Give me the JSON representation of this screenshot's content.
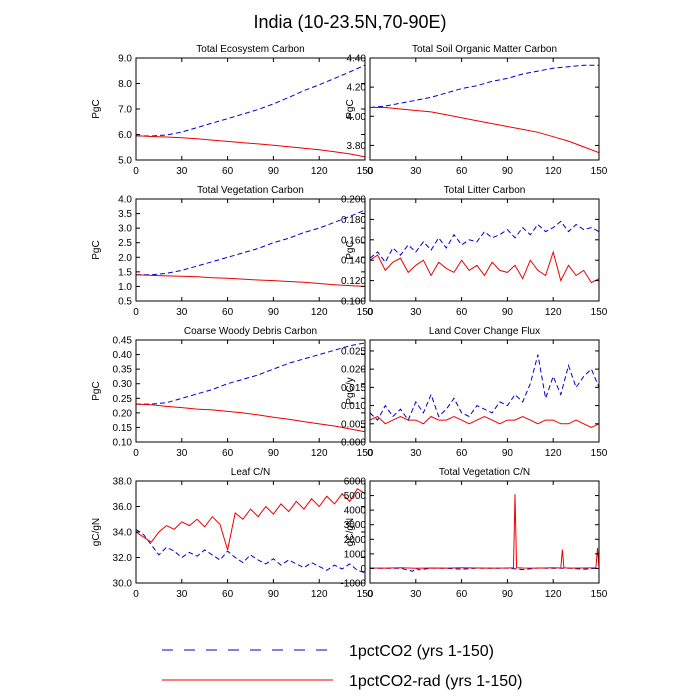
{
  "figure": {
    "title": "India (10-23.5N,70-90E)"
  },
  "legend": {
    "placement": "bottom",
    "entries": [
      {
        "label": "1pctCO2 (yrs 1-150)",
        "color": "#0000cc",
        "dash": "dashed"
      },
      {
        "label": "1pctCO2-rad (yrs 1-150)",
        "color": "#ee0000",
        "dash": "solid"
      }
    ]
  },
  "chart_data": [
    {
      "type": "line",
      "title": "Total Ecosystem Carbon",
      "xlabel": "",
      "ylabel": "PgC",
      "xlim": [
        0,
        150
      ],
      "ylim": [
        5.0,
        9.0
      ],
      "xticks": [
        0,
        30,
        60,
        90,
        120,
        150
      ],
      "yticks": [
        5.0,
        6.0,
        7.0,
        8.0,
        9.0
      ],
      "ytick_labels": [
        "5.0",
        "6.0",
        "7.0",
        "8.0",
        "9.0"
      ],
      "series": [
        {
          "legend_index": 0,
          "x": [
            0,
            10,
            20,
            30,
            40,
            50,
            60,
            70,
            80,
            90,
            100,
            110,
            120,
            130,
            140,
            150
          ],
          "y": [
            5.95,
            5.94,
            5.98,
            6.1,
            6.27,
            6.45,
            6.62,
            6.8,
            6.98,
            7.2,
            7.45,
            7.72,
            7.95,
            8.2,
            8.45,
            8.72
          ]
        },
        {
          "legend_index": 1,
          "x": [
            0,
            10,
            20,
            30,
            40,
            50,
            60,
            70,
            80,
            90,
            100,
            110,
            120,
            130,
            140,
            150
          ],
          "y": [
            5.95,
            5.92,
            5.9,
            5.87,
            5.83,
            5.78,
            5.73,
            5.68,
            5.63,
            5.58,
            5.52,
            5.46,
            5.4,
            5.32,
            5.24,
            5.12
          ]
        }
      ]
    },
    {
      "type": "line",
      "title": "Total Soil Organic Matter Carbon",
      "xlabel": "",
      "ylabel": "PgC",
      "xlim": [
        0,
        150
      ],
      "ylim": [
        3.7,
        4.4
      ],
      "xticks": [
        0,
        30,
        60,
        90,
        120,
        150
      ],
      "yticks": [
        3.8,
        4.0,
        4.2,
        4.4
      ],
      "ytick_labels": [
        "3.80",
        "4.00",
        "4.20",
        "4.40"
      ],
      "series": [
        {
          "legend_index": 0,
          "x": [
            0,
            10,
            20,
            30,
            40,
            50,
            60,
            70,
            80,
            90,
            100,
            110,
            120,
            130,
            140,
            150
          ],
          "y": [
            4.06,
            4.07,
            4.09,
            4.11,
            4.13,
            4.16,
            4.19,
            4.21,
            4.24,
            4.26,
            4.29,
            4.31,
            4.33,
            4.34,
            4.35,
            4.35
          ]
        },
        {
          "legend_index": 1,
          "x": [
            0,
            10,
            20,
            30,
            40,
            50,
            60,
            70,
            80,
            90,
            100,
            110,
            120,
            130,
            140,
            150
          ],
          "y": [
            4.06,
            4.06,
            4.05,
            4.04,
            4.03,
            4.01,
            3.99,
            3.97,
            3.95,
            3.93,
            3.91,
            3.89,
            3.86,
            3.83,
            3.79,
            3.75
          ]
        }
      ]
    },
    {
      "type": "line",
      "title": "Total Vegetation Carbon",
      "xlabel": "",
      "ylabel": "PgC",
      "xlim": [
        0,
        150
      ],
      "ylim": [
        0.5,
        4.0
      ],
      "xticks": [
        0,
        30,
        60,
        90,
        120,
        150
      ],
      "yticks": [
        0.5,
        1.0,
        1.5,
        2.0,
        2.5,
        3.0,
        3.5,
        4.0
      ],
      "ytick_labels": [
        "0.5",
        "1.0",
        "1.5",
        "2.0",
        "2.5",
        "3.0",
        "3.5",
        "4.0"
      ],
      "series": [
        {
          "legend_index": 0,
          "x": [
            0,
            10,
            20,
            30,
            40,
            50,
            60,
            70,
            80,
            90,
            100,
            110,
            120,
            130,
            140,
            150
          ],
          "y": [
            1.4,
            1.4,
            1.45,
            1.55,
            1.7,
            1.85,
            2.0,
            2.15,
            2.3,
            2.5,
            2.65,
            2.85,
            3.0,
            3.2,
            3.4,
            3.62
          ]
        },
        {
          "legend_index": 1,
          "x": [
            0,
            10,
            20,
            30,
            40,
            50,
            60,
            70,
            80,
            90,
            100,
            110,
            120,
            130,
            140,
            150
          ],
          "y": [
            1.4,
            1.38,
            1.36,
            1.35,
            1.33,
            1.3,
            1.28,
            1.25,
            1.22,
            1.2,
            1.17,
            1.14,
            1.1,
            1.06,
            1.03,
            1.0
          ]
        }
      ]
    },
    {
      "type": "line",
      "title": "Total Litter Carbon",
      "xlabel": "",
      "ylabel": "PgC",
      "xlim": [
        0,
        150
      ],
      "ylim": [
        0.1,
        0.2
      ],
      "xticks": [
        0,
        30,
        60,
        90,
        120,
        150
      ],
      "yticks": [
        0.1,
        0.12,
        0.14,
        0.16,
        0.18,
        0.2
      ],
      "ytick_labels": [
        "0.100",
        "0.120",
        "0.140",
        "0.160",
        "0.180",
        "0.200"
      ],
      "series": [
        {
          "legend_index": 0,
          "x": [
            0,
            5,
            10,
            15,
            20,
            25,
            30,
            35,
            40,
            45,
            50,
            55,
            60,
            65,
            70,
            75,
            80,
            85,
            90,
            95,
            100,
            105,
            110,
            115,
            120,
            125,
            130,
            135,
            140,
            145,
            150
          ],
          "y": [
            0.142,
            0.148,
            0.138,
            0.152,
            0.145,
            0.155,
            0.148,
            0.158,
            0.15,
            0.162,
            0.152,
            0.165,
            0.155,
            0.16,
            0.158,
            0.168,
            0.162,
            0.165,
            0.17,
            0.162,
            0.172,
            0.165,
            0.175,
            0.168,
            0.172,
            0.178,
            0.168,
            0.175,
            0.17,
            0.172,
            0.168
          ]
        },
        {
          "legend_index": 1,
          "x": [
            0,
            5,
            10,
            15,
            20,
            25,
            30,
            35,
            40,
            45,
            50,
            55,
            60,
            65,
            70,
            75,
            80,
            85,
            90,
            95,
            100,
            105,
            110,
            115,
            120,
            125,
            130,
            135,
            140,
            145,
            150
          ],
          "y": [
            0.14,
            0.145,
            0.13,
            0.138,
            0.142,
            0.128,
            0.135,
            0.14,
            0.125,
            0.138,
            0.132,
            0.128,
            0.14,
            0.13,
            0.135,
            0.125,
            0.138,
            0.13,
            0.128,
            0.135,
            0.122,
            0.14,
            0.13,
            0.125,
            0.148,
            0.12,
            0.135,
            0.125,
            0.13,
            0.118,
            0.122
          ]
        }
      ]
    },
    {
      "type": "line",
      "title": "Coarse Woody Debris Carbon",
      "xlabel": "",
      "ylabel": "PgC",
      "xlim": [
        0,
        150
      ],
      "ylim": [
        0.1,
        0.45
      ],
      "xticks": [
        0,
        30,
        60,
        90,
        120,
        150
      ],
      "yticks": [
        0.1,
        0.15,
        0.2,
        0.25,
        0.3,
        0.35,
        0.4,
        0.45
      ],
      "ytick_labels": [
        "0.10",
        "0.15",
        "0.20",
        "0.25",
        "0.30",
        "0.35",
        "0.40",
        "0.45"
      ],
      "series": [
        {
          "legend_index": 0,
          "x": [
            0,
            10,
            20,
            30,
            40,
            50,
            60,
            70,
            80,
            90,
            100,
            110,
            120,
            130,
            140,
            150
          ],
          "y": [
            0.23,
            0.23,
            0.235,
            0.25,
            0.265,
            0.28,
            0.3,
            0.315,
            0.33,
            0.35,
            0.37,
            0.385,
            0.4,
            0.415,
            0.43,
            0.44
          ]
        },
        {
          "legend_index": 1,
          "x": [
            0,
            10,
            20,
            30,
            40,
            50,
            60,
            70,
            80,
            90,
            100,
            110,
            120,
            130,
            140,
            150
          ],
          "y": [
            0.23,
            0.228,
            0.222,
            0.218,
            0.213,
            0.21,
            0.205,
            0.2,
            0.193,
            0.185,
            0.178,
            0.17,
            0.162,
            0.155,
            0.145,
            0.135
          ]
        }
      ]
    },
    {
      "type": "line",
      "title": "Land Cover Change Flux",
      "xlabel": "",
      "ylabel": "PgC/y",
      "xlim": [
        0,
        150
      ],
      "ylim": [
        0.0,
        0.028
      ],
      "xticks": [
        0,
        30,
        60,
        90,
        120,
        150
      ],
      "yticks": [
        0.0,
        0.005,
        0.01,
        0.015,
        0.02,
        0.025
      ],
      "ytick_labels": [
        "0.000",
        "0.005",
        "0.010",
        "0.015",
        "0.020",
        "0.025"
      ],
      "series": [
        {
          "legend_index": 0,
          "x": [
            0,
            5,
            10,
            15,
            20,
            25,
            30,
            35,
            40,
            45,
            50,
            55,
            60,
            65,
            70,
            75,
            80,
            85,
            90,
            95,
            100,
            105,
            110,
            115,
            120,
            125,
            130,
            135,
            140,
            145,
            150
          ],
          "y": [
            0.008,
            0.006,
            0.01,
            0.007,
            0.009,
            0.006,
            0.011,
            0.008,
            0.013,
            0.007,
            0.009,
            0.012,
            0.008,
            0.007,
            0.01,
            0.009,
            0.008,
            0.011,
            0.01,
            0.013,
            0.011,
            0.016,
            0.024,
            0.012,
            0.018,
            0.013,
            0.021,
            0.015,
            0.018,
            0.02,
            0.015
          ]
        },
        {
          "legend_index": 1,
          "x": [
            0,
            5,
            10,
            15,
            20,
            25,
            30,
            35,
            40,
            45,
            50,
            55,
            60,
            65,
            70,
            75,
            80,
            85,
            90,
            95,
            100,
            105,
            110,
            115,
            120,
            125,
            130,
            135,
            140,
            145,
            150
          ],
          "y": [
            0.006,
            0.007,
            0.005,
            0.006,
            0.007,
            0.006,
            0.006,
            0.005,
            0.007,
            0.006,
            0.006,
            0.007,
            0.006,
            0.005,
            0.006,
            0.007,
            0.006,
            0.005,
            0.006,
            0.006,
            0.007,
            0.006,
            0.005,
            0.006,
            0.006,
            0.005,
            0.005,
            0.006,
            0.005,
            0.004,
            0.005
          ]
        }
      ]
    },
    {
      "type": "line",
      "title": "Leaf C/N",
      "xlabel": "",
      "ylabel": "gC/gN",
      "xlim": [
        0,
        150
      ],
      "ylim": [
        30.0,
        38.0
      ],
      "xticks": [
        0,
        30,
        60,
        90,
        120,
        150
      ],
      "yticks": [
        30.0,
        32.0,
        34.0,
        36.0,
        38.0
      ],
      "ytick_labels": [
        "30.0",
        "32.0",
        "34.0",
        "36.0",
        "38.0"
      ],
      "series": [
        {
          "legend_index": 0,
          "x": [
            0,
            5,
            10,
            15,
            20,
            25,
            30,
            35,
            40,
            45,
            50,
            55,
            60,
            65,
            70,
            75,
            80,
            85,
            90,
            95,
            100,
            105,
            110,
            115,
            120,
            125,
            130,
            135,
            140,
            145,
            150
          ],
          "y": [
            34.2,
            33.8,
            33.0,
            32.2,
            32.8,
            32.5,
            32.0,
            32.4,
            32.1,
            32.6,
            32.2,
            31.8,
            32.5,
            32.0,
            31.6,
            32.2,
            31.8,
            31.5,
            31.9,
            31.4,
            31.8,
            31.5,
            31.2,
            31.6,
            31.3,
            31.0,
            31.4,
            31.1,
            31.5,
            31.0,
            30.8
          ]
        },
        {
          "legend_index": 1,
          "x": [
            0,
            5,
            10,
            15,
            20,
            25,
            30,
            35,
            40,
            45,
            50,
            55,
            60,
            65,
            70,
            75,
            80,
            85,
            90,
            95,
            100,
            105,
            110,
            115,
            120,
            125,
            130,
            135,
            140,
            145,
            150
          ],
          "y": [
            34.0,
            33.6,
            33.2,
            34.0,
            34.5,
            34.2,
            34.8,
            34.5,
            35.0,
            34.4,
            35.2,
            34.6,
            32.6,
            35.5,
            35.0,
            35.8,
            35.2,
            36.0,
            35.4,
            36.2,
            35.6,
            36.4,
            35.8,
            36.6,
            36.0,
            36.8,
            36.2,
            37.0,
            36.4,
            37.4,
            37.0
          ]
        }
      ]
    },
    {
      "type": "line",
      "title": "Total Vegetation C/N",
      "xlabel": "",
      "ylabel": "gC/gN",
      "xlim": [
        0,
        150
      ],
      "ylim": [
        -1000,
        6000
      ],
      "xticks": [
        0,
        30,
        60,
        90,
        120,
        150
      ],
      "yticks": [
        -1000,
        0,
        1000,
        2000,
        3000,
        4000,
        5000,
        6000
      ],
      "ytick_labels": [
        "-1000",
        "0",
        "1000",
        "2000",
        "3000",
        "4000",
        "5000",
        "6000"
      ],
      "series": [
        {
          "legend_index": 0,
          "x": [
            0,
            10,
            20,
            28,
            30,
            32,
            40,
            50,
            60,
            70,
            80,
            90,
            100,
            110,
            120,
            130,
            140,
            150
          ],
          "y": [
            20,
            10,
            15,
            -200,
            30,
            -100,
            20,
            10,
            -50,
            20,
            10,
            20,
            -80,
            30,
            10,
            20,
            -50,
            20
          ]
        },
        {
          "legend_index": 1,
          "x": [
            0,
            10,
            20,
            30,
            40,
            50,
            60,
            70,
            80,
            90,
            94,
            95,
            96,
            100,
            110,
            120,
            125,
            126,
            127,
            130,
            140,
            148,
            149,
            150
          ],
          "y": [
            30,
            20,
            40,
            10,
            30,
            20,
            40,
            30,
            20,
            30,
            40,
            5100,
            40,
            30,
            20,
            40,
            30,
            1300,
            40,
            20,
            30,
            40,
            1400,
            50
          ]
        }
      ]
    }
  ]
}
